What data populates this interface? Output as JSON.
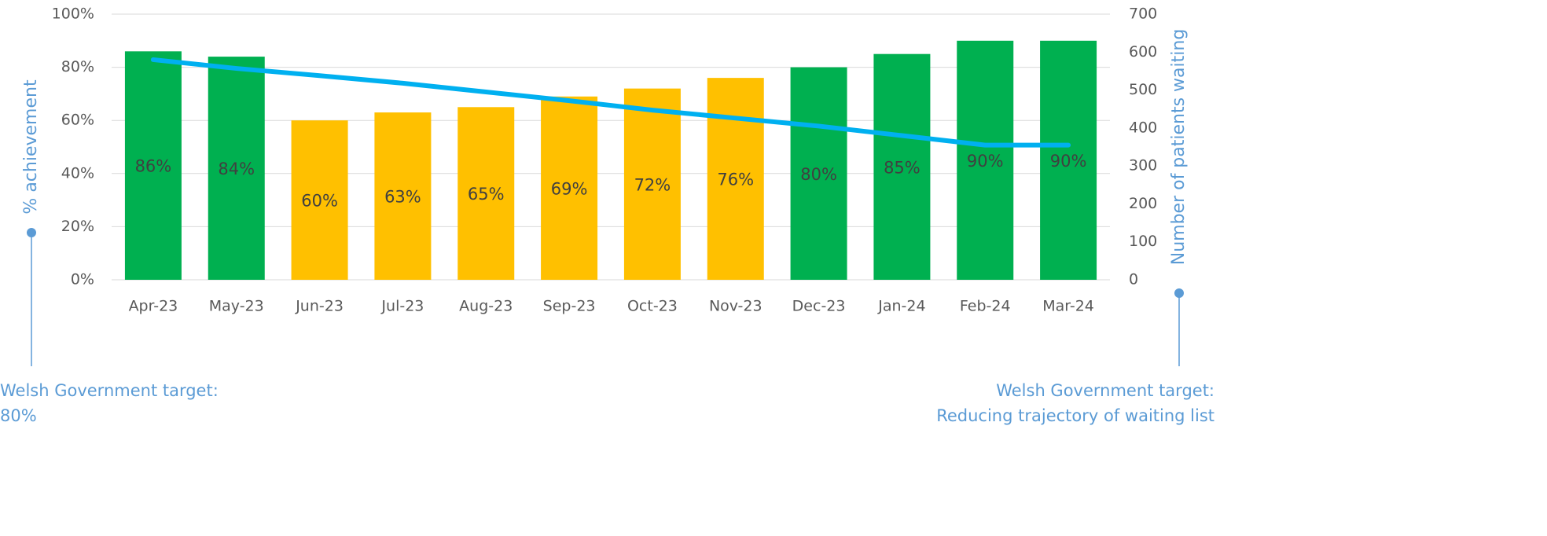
{
  "chart_data": {
    "type": "bar",
    "categories": [
      "Apr-23",
      "May-23",
      "Jun-23",
      "Jul-23",
      "Aug-23",
      "Sep-23",
      "Oct-23",
      "Nov-23",
      "Dec-23",
      "Jan-24",
      "Feb-24",
      "Mar-24"
    ],
    "series": [
      {
        "type": "bar",
        "values": [
          86,
          84,
          60,
          63,
          65,
          69,
          72,
          76,
          80,
          85,
          90,
          90
        ],
        "value_labels": [
          "86%",
          "84%",
          "60%",
          "63%",
          "65%",
          "69%",
          "72%",
          "76%",
          "80%",
          "85%",
          "90%",
          "90%"
        ],
        "colors": [
          "#00b050",
          "#00b050",
          "#ffc000",
          "#ffc000",
          "#ffc000",
          "#ffc000",
          "#ffc000",
          "#ffc000",
          "#00b050",
          "#00b050",
          "#00b050",
          "#00b050"
        ]
      },
      {
        "type": "line",
        "axis": "y2",
        "color": "#00b0f0",
        "values": [
          580,
          557,
          538,
          518,
          495,
          472,
          447,
          426,
          405,
          380,
          355,
          355
        ]
      }
    ],
    "ylabel": "% achievement",
    "y2label": "Number of patients waiting",
    "ylim": [
      0,
      100
    ],
    "yticks": [
      {
        "value": 0,
        "label": "0%"
      },
      {
        "value": 20,
        "label": "20%"
      },
      {
        "value": 40,
        "label": "40%"
      },
      {
        "value": 60,
        "label": "60%"
      },
      {
        "value": 80,
        "label": "80%"
      },
      {
        "value": 100,
        "label": "100%"
      }
    ],
    "y2lim": [
      0,
      700
    ],
    "y2ticks": [
      0,
      100,
      200,
      300,
      400,
      500,
      600,
      700
    ],
    "grid": true,
    "annotations": [
      {
        "lines": [
          "Welsh Government target:",
          "80%"
        ]
      },
      {
        "lines": [
          "Welsh Government target:",
          "Reducing trajectory of waiting list"
        ]
      }
    ]
  }
}
